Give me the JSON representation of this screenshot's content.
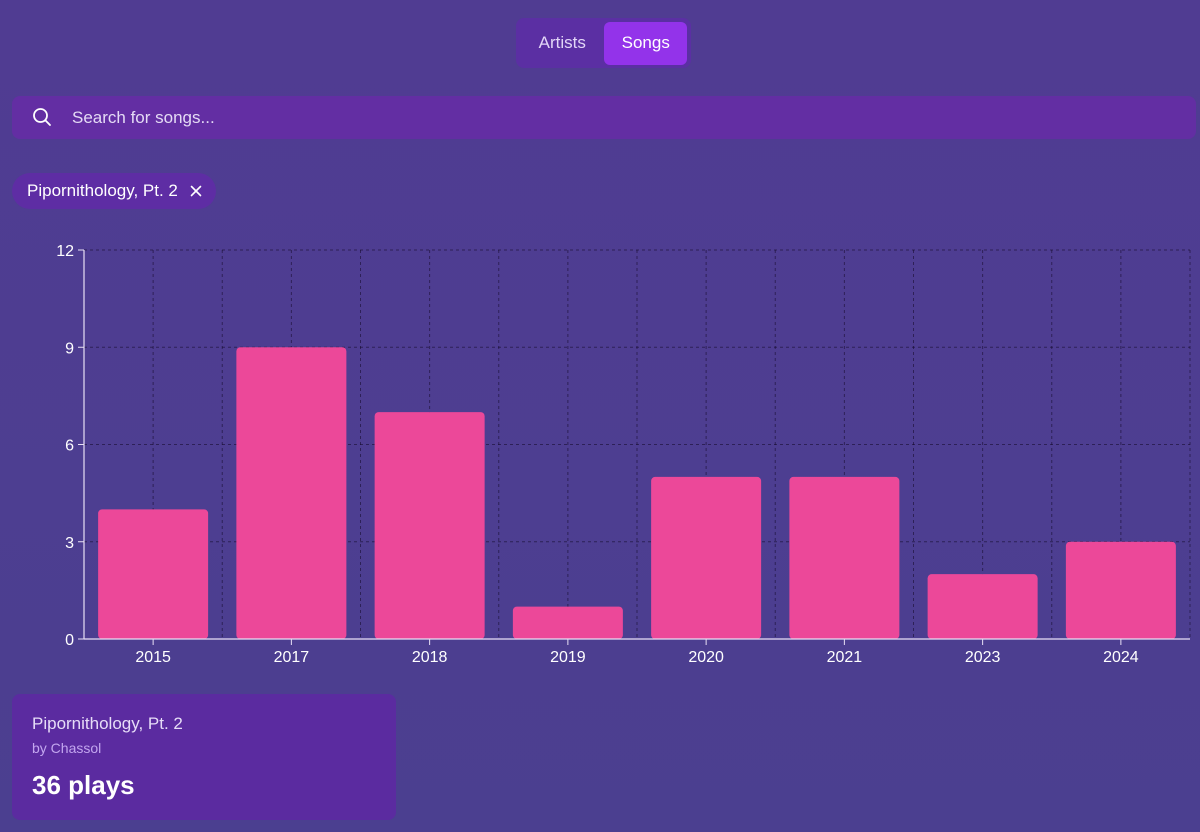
{
  "tabs": {
    "artists_label": "Artists",
    "songs_label": "Songs",
    "active": "Songs"
  },
  "search": {
    "placeholder": "Search for songs...",
    "value": "",
    "icon": "search-icon"
  },
  "filter_chip": {
    "label": "Pipornithology, Pt. 2",
    "remove_icon": "close-icon"
  },
  "colors": {
    "bar": "#ec4899",
    "active_tab": "#9333ea",
    "background": "#4c3d8f"
  },
  "chart_data": {
    "type": "bar",
    "categories": [
      "2015",
      "2017",
      "2018",
      "2019",
      "2020",
      "2021",
      "2023",
      "2024"
    ],
    "values": [
      4,
      9,
      7,
      1,
      5,
      5,
      2,
      3
    ],
    "yticks": [
      "0",
      "3",
      "6",
      "9",
      "12"
    ],
    "ylim": [
      0,
      12
    ],
    "grid": true,
    "title": "",
    "xlabel": "",
    "ylabel": ""
  },
  "summary_card": {
    "title": "Pipornithology, Pt. 2",
    "artist": "by Chassol",
    "plays": "36 plays"
  }
}
